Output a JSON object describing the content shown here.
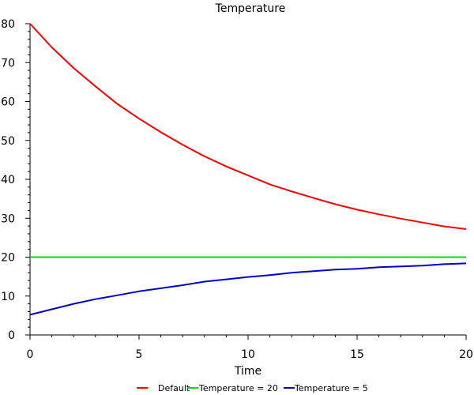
{
  "chart_data": {
    "type": "line",
    "title": "Temperature",
    "xlabel": "Time",
    "ylabel": "",
    "xlim": [
      0,
      20
    ],
    "ylim": [
      0,
      80
    ],
    "x_ticks": [
      0,
      5,
      10,
      15,
      20
    ],
    "y_ticks": [
      0,
      10,
      20,
      30,
      40,
      50,
      60,
      70,
      80
    ],
    "grid": false,
    "legend_position": "bottom",
    "x": [
      0,
      1,
      2,
      3,
      4,
      5,
      6,
      7,
      8,
      9,
      10,
      11,
      12,
      13,
      14,
      15,
      16,
      17,
      18,
      19,
      20
    ],
    "series": [
      {
        "name": "Default",
        "color": "#ff0000",
        "values": [
          80.0,
          73.9,
          68.6,
          63.9,
          59.4,
          55.6,
          52.1,
          48.9,
          45.9,
          43.3,
          41.0,
          38.7,
          36.9,
          35.2,
          33.6,
          32.2,
          31.0,
          29.9,
          28.9,
          27.9,
          27.2
        ]
      },
      {
        "name": "Temperature = 20",
        "color": "#00dd00",
        "values": [
          20,
          20,
          20,
          20,
          20,
          20,
          20,
          20,
          20,
          20,
          20,
          20,
          20,
          20,
          20,
          20,
          20,
          20,
          20,
          20,
          20
        ]
      },
      {
        "name": "Temperature = 5",
        "color": "#0000cc",
        "values": [
          5.2,
          6.6,
          8.0,
          9.2,
          10.2,
          11.2,
          12.0,
          12.8,
          13.7,
          14.3,
          14.9,
          15.4,
          16.0,
          16.4,
          16.8,
          17.0,
          17.4,
          17.6,
          17.8,
          18.2,
          18.4
        ]
      }
    ]
  }
}
